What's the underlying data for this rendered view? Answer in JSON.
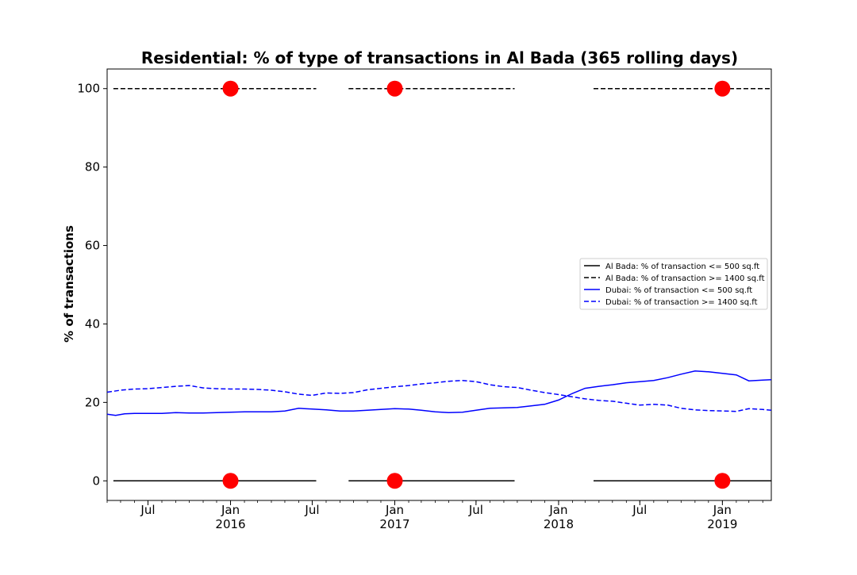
{
  "chart_data": {
    "type": "line",
    "title": "Residential: % of type of transactions in Al Bada (365 rolling days)",
    "xlabel": "",
    "ylabel": "% of transactions",
    "xlim": [
      "2015-04-01",
      "2019-04-20"
    ],
    "ylim": [
      -5,
      105
    ],
    "y_ticks": [
      0,
      20,
      40,
      60,
      80,
      100
    ],
    "x_ticks": [
      {
        "date": "2015-07-01",
        "label": "Jul",
        "sublabel": ""
      },
      {
        "date": "2016-01-01",
        "label": "Jan",
        "sublabel": "2016"
      },
      {
        "date": "2016-07-01",
        "label": "Jul",
        "sublabel": ""
      },
      {
        "date": "2017-01-01",
        "label": "Jan",
        "sublabel": "2017"
      },
      {
        "date": "2017-07-01",
        "label": "Jul",
        "sublabel": ""
      },
      {
        "date": "2018-01-01",
        "label": "Jan",
        "sublabel": "2018"
      },
      {
        "date": "2018-07-01",
        "label": "Jul",
        "sublabel": ""
      },
      {
        "date": "2019-01-01",
        "label": "Jan",
        "sublabel": "2019"
      }
    ],
    "legend_position": "center-right",
    "grid": false,
    "series": [
      {
        "name": "Al Bada: % of transaction <= 500 sq.ft",
        "color": "#000000",
        "style": "solid",
        "segments": [
          [
            [
              "2015-04-15",
              0
            ],
            [
              "2016-07-10",
              0
            ]
          ],
          [
            [
              "2016-09-20",
              0
            ],
            [
              "2017-09-25",
              0
            ]
          ],
          [
            [
              "2018-03-20",
              0
            ],
            [
              "2019-04-20",
              0
            ]
          ]
        ]
      },
      {
        "name": "Al Bada: % of transaction >= 1400 sq.ft",
        "color": "#000000",
        "style": "dashed",
        "segments": [
          [
            [
              "2015-04-15",
              100
            ],
            [
              "2016-07-10",
              100
            ]
          ],
          [
            [
              "2016-09-20",
              100
            ],
            [
              "2017-09-25",
              100
            ]
          ],
          [
            [
              "2018-03-20",
              100
            ],
            [
              "2019-04-20",
              100
            ]
          ]
        ]
      },
      {
        "name": "Dubai: % of transaction <= 500 sq.ft",
        "color": "#0000ff",
        "style": "solid",
        "points": [
          [
            "2015-04-01",
            17.0
          ],
          [
            "2015-04-20",
            16.7
          ],
          [
            "2015-05-10",
            17.1
          ],
          [
            "2015-06-01",
            17.2
          ],
          [
            "2015-07-01",
            17.2
          ],
          [
            "2015-08-01",
            17.2
          ],
          [
            "2015-09-01",
            17.4
          ],
          [
            "2015-10-01",
            17.3
          ],
          [
            "2015-11-01",
            17.3
          ],
          [
            "2016-01-01",
            17.5
          ],
          [
            "2016-02-01",
            17.6
          ],
          [
            "2016-04-01",
            17.6
          ],
          [
            "2016-05-01",
            17.8
          ],
          [
            "2016-06-01",
            18.5
          ],
          [
            "2016-07-01",
            18.3
          ],
          [
            "2016-08-01",
            18.1
          ],
          [
            "2016-09-01",
            17.8
          ],
          [
            "2016-10-01",
            17.8
          ],
          [
            "2016-11-01",
            18.0
          ],
          [
            "2016-12-01",
            18.2
          ],
          [
            "2017-01-01",
            18.4
          ],
          [
            "2017-02-01",
            18.3
          ],
          [
            "2017-03-01",
            18.0
          ],
          [
            "2017-04-01",
            17.6
          ],
          [
            "2017-05-01",
            17.4
          ],
          [
            "2017-06-01",
            17.5
          ],
          [
            "2017-07-01",
            18.0
          ],
          [
            "2017-08-01",
            18.5
          ],
          [
            "2017-09-01",
            18.6
          ],
          [
            "2017-10-01",
            18.7
          ],
          [
            "2017-11-01",
            19.1
          ],
          [
            "2017-12-01",
            19.5
          ],
          [
            "2018-01-01",
            20.6
          ],
          [
            "2018-02-01",
            22.3
          ],
          [
            "2018-03-01",
            23.6
          ],
          [
            "2018-04-01",
            24.1
          ],
          [
            "2018-05-01",
            24.5
          ],
          [
            "2018-06-01",
            25.0
          ],
          [
            "2018-07-01",
            25.3
          ],
          [
            "2018-08-01",
            25.6
          ],
          [
            "2018-09-01",
            26.3
          ],
          [
            "2018-10-01",
            27.2
          ],
          [
            "2018-11-01",
            28.0
          ],
          [
            "2018-12-01",
            27.8
          ],
          [
            "2019-01-01",
            27.4
          ],
          [
            "2019-02-01",
            27.0
          ],
          [
            "2019-03-01",
            25.5
          ],
          [
            "2019-04-01",
            25.7
          ],
          [
            "2019-04-20",
            25.8
          ]
        ]
      },
      {
        "name": "Dubai: % of transaction >= 1400 sq.ft",
        "color": "#0000ff",
        "style": "dashed",
        "points": [
          [
            "2015-04-01",
            22.6
          ],
          [
            "2015-05-01",
            23.1
          ],
          [
            "2015-06-01",
            23.4
          ],
          [
            "2015-07-01",
            23.5
          ],
          [
            "2015-08-01",
            23.8
          ],
          [
            "2015-09-01",
            24.1
          ],
          [
            "2015-10-01",
            24.3
          ],
          [
            "2015-11-01",
            23.7
          ],
          [
            "2015-12-01",
            23.5
          ],
          [
            "2016-01-01",
            23.4
          ],
          [
            "2016-02-01",
            23.4
          ],
          [
            "2016-03-01",
            23.3
          ],
          [
            "2016-04-01",
            23.1
          ],
          [
            "2016-05-01",
            22.7
          ],
          [
            "2016-06-01",
            22.1
          ],
          [
            "2016-07-01",
            21.8
          ],
          [
            "2016-08-01",
            22.4
          ],
          [
            "2016-09-01",
            22.3
          ],
          [
            "2016-10-01",
            22.5
          ],
          [
            "2016-11-01",
            23.2
          ],
          [
            "2016-12-01",
            23.6
          ],
          [
            "2017-01-01",
            24.0
          ],
          [
            "2017-02-01",
            24.3
          ],
          [
            "2017-03-01",
            24.7
          ],
          [
            "2017-04-01",
            25.0
          ],
          [
            "2017-05-01",
            25.4
          ],
          [
            "2017-06-01",
            25.6
          ],
          [
            "2017-07-01",
            25.3
          ],
          [
            "2017-08-01",
            24.5
          ],
          [
            "2017-09-01",
            24.0
          ],
          [
            "2017-10-01",
            23.8
          ],
          [
            "2017-11-01",
            23.1
          ],
          [
            "2017-12-01",
            22.5
          ],
          [
            "2018-01-01",
            22.0
          ],
          [
            "2018-02-01",
            21.4
          ],
          [
            "2018-03-01",
            20.9
          ],
          [
            "2018-04-01",
            20.5
          ],
          [
            "2018-05-01",
            20.3
          ],
          [
            "2018-06-01",
            19.8
          ],
          [
            "2018-07-01",
            19.3
          ],
          [
            "2018-08-01",
            19.5
          ],
          [
            "2018-09-01",
            19.3
          ],
          [
            "2018-10-01",
            18.5
          ],
          [
            "2018-11-01",
            18.1
          ],
          [
            "2018-12-01",
            17.9
          ],
          [
            "2019-01-01",
            17.8
          ],
          [
            "2019-02-01",
            17.7
          ],
          [
            "2019-03-01",
            18.4
          ],
          [
            "2019-04-01",
            18.2
          ],
          [
            "2019-04-20",
            18.0
          ]
        ]
      }
    ],
    "markers": {
      "color": "#ff0000",
      "points": [
        [
          "2016-01-01",
          100
        ],
        [
          "2017-01-01",
          100
        ],
        [
          "2019-01-01",
          100
        ],
        [
          "2016-01-01",
          0
        ],
        [
          "2017-01-01",
          0
        ],
        [
          "2019-01-01",
          0
        ]
      ]
    }
  }
}
